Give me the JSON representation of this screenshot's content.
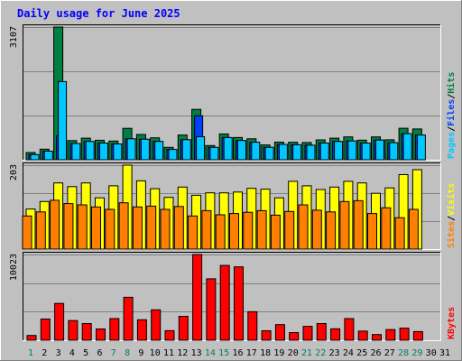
{
  "chart_data": {
    "type": "bar",
    "title": "Daily usage for June 2025",
    "days": [
      "1",
      "2",
      "3",
      "4",
      "5",
      "6",
      "7",
      "8",
      "9",
      "10",
      "11",
      "12",
      "13",
      "14",
      "15",
      "16",
      "17",
      "18",
      "19",
      "20",
      "21",
      "22",
      "23",
      "24",
      "25",
      "26",
      "27",
      "28",
      "29",
      "30",
      "31"
    ],
    "weekend_days": [
      1,
      7,
      8,
      14,
      15,
      21,
      22,
      28,
      29
    ],
    "panels": [
      {
        "id": "pages-files-hits",
        "max_label": "3107",
        "max": 3107,
        "legend": [
          "Pages",
          "/",
          "Files",
          "/",
          "Hits"
        ],
        "legend_colors": [
          "#00c8ff",
          "#000000",
          "#0040ff",
          "#000000",
          "#008040"
        ],
        "series": [
          {
            "name": "Hits",
            "color": "#008040",
            "values": [
              170,
              248,
              3107,
              449,
              505,
              457,
              437,
              736,
              591,
              514,
              289,
              579,
              1180,
              331,
              605,
              520,
              491,
              347,
              413,
              411,
              403,
              464,
              505,
              534,
              458,
              534,
              467,
              737,
              720
            ]
          },
          {
            "name": "Files",
            "color": "#0040ff",
            "values": [
              120,
              200,
              560,
              380,
              430,
              390,
              370,
              490,
              480,
              430,
              240,
              470,
              1030,
              290,
              520,
              450,
              410,
              290,
              360,
              350,
              340,
              390,
              430,
              440,
              390,
              460,
              400,
              610,
              580
            ]
          },
          {
            "name": "Pages",
            "color": "#00c8ff",
            "values": [
              120,
              200,
              1830,
              380,
              430,
              390,
              370,
              490,
              480,
              430,
              240,
              470,
              540,
              290,
              520,
              450,
              410,
              290,
              360,
              350,
              340,
              390,
              430,
              440,
              390,
              460,
              400,
              610,
              580
            ]
          }
        ]
      },
      {
        "id": "visits-sites",
        "max_label": "203",
        "max": 203,
        "legend": [
          "Sites",
          "/",
          "Visits"
        ],
        "legend_colors": [
          "#ff8000",
          "#000000",
          "#ffff00"
        ],
        "series": [
          {
            "name": "Visits",
            "color": "#ffff00",
            "values": [
              97,
              115,
              160,
              151,
              160,
              124,
              153,
              203,
              165,
              146,
              125,
              150,
              130,
              136,
              136,
              138,
              147,
              145,
              124,
              164,
              153,
              144,
              150,
              164,
              160,
              135,
              148,
              180,
              192
            ]
          },
          {
            "name": "Sites",
            "color": "#ff8000",
            "values": [
              80,
              90,
              118,
              110,
              107,
              102,
              96,
              112,
              102,
              104,
              96,
              103,
              80,
              93,
              83,
              86,
              89,
              93,
              82,
              91,
              107,
              94,
              90,
              115,
              117,
              86,
              100,
              76,
              96
            ]
          }
        ]
      },
      {
        "id": "kbytes",
        "max_label": "10023",
        "max": 10023,
        "legend": [
          "KBytes"
        ],
        "legend_colors": [
          "#ff0000"
        ],
        "series": [
          {
            "name": "KBytes",
            "color": "#ff0000",
            "values": [
              560,
              2480,
              4300,
              2300,
              1950,
              1320,
              2530,
              5020,
              2390,
              3560,
              1120,
              2800,
              10023,
              7180,
              8750,
              8580,
              3330,
              1110,
              1830,
              900,
              1620,
              1950,
              1340,
              2530,
              1070,
              660,
              1250,
              1410,
              1010
            ]
          }
        ]
      }
    ]
  }
}
